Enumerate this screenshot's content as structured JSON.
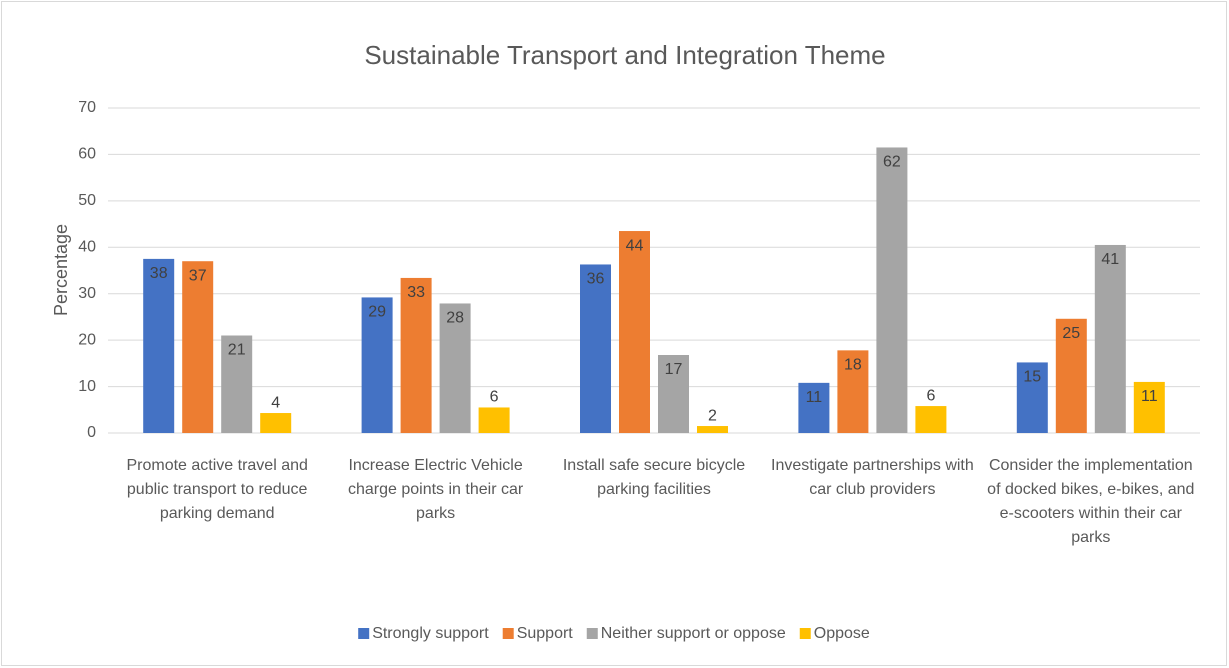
{
  "chart_data": {
    "type": "bar",
    "title": "Sustainable Transport and Integration Theme",
    "ylabel": "Percentage",
    "categories": [
      "Promote active travel and public transport to reduce parking demand",
      "Increase Electric Vehicle charge points in their car parks",
      "Install safe secure bicycle parking facilities",
      "Investigate partnerships with car club providers",
      "Consider the implementation of docked bikes, e-bikes, and e-scooters within their car parks"
    ],
    "series": [
      {
        "name": "Strongly support",
        "color": "#4472c4",
        "values": [
          37.5,
          29.2,
          36.3,
          10.8,
          15.2
        ],
        "value_labels": [
          "38",
          "29",
          "36",
          "11",
          "15"
        ]
      },
      {
        "name": "Support",
        "color": "#ed7d31",
        "values": [
          37,
          33.4,
          43.5,
          17.8,
          24.6
        ],
        "value_labels": [
          "37",
          "33",
          "44",
          "18",
          "25"
        ]
      },
      {
        "name": "Neither support or oppose",
        "color": "#a5a5a5",
        "values": [
          21,
          27.9,
          16.8,
          61.5,
          40.5
        ],
        "value_labels": [
          "21",
          "28",
          "17",
          "62",
          "41"
        ]
      },
      {
        "name": "Oppose",
        "color": "#ffc000",
        "values": [
          4.3,
          5.5,
          1.5,
          5.8,
          11
        ],
        "value_labels": [
          "4",
          "6",
          "2",
          "6",
          "11"
        ]
      }
    ],
    "ylim": [
      0,
      70
    ],
    "yticks": [
      0,
      10,
      20,
      30,
      40,
      50,
      60,
      70
    ],
    "grid": true,
    "legend": "bottom"
  }
}
